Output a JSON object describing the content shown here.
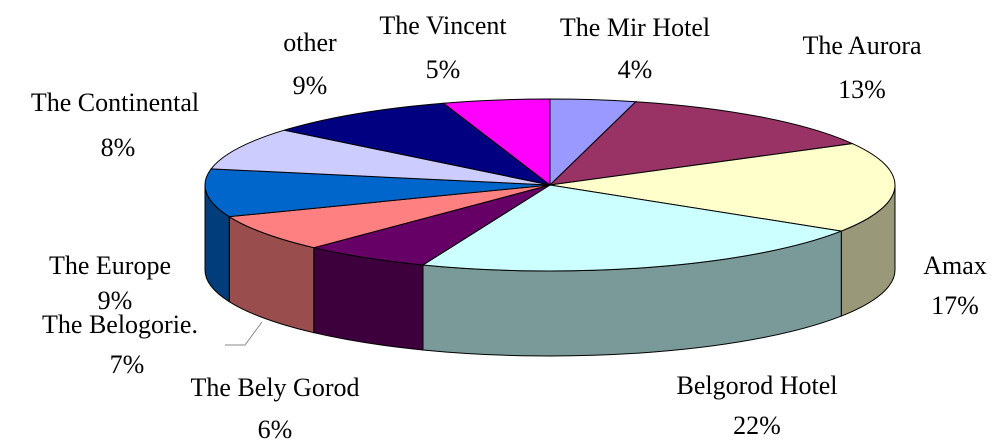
{
  "chart_data": {
    "type": "pie3d",
    "categories": [
      "The Mir Hotel",
      "The Aurora",
      "Amax",
      "Belgorod Hotel",
      "The Bely Gorod",
      "The Belogorie.",
      "The Europe",
      "The Continental",
      "other",
      "The Vincent"
    ],
    "values": [
      4,
      13,
      17,
      22,
      6,
      7,
      9,
      8,
      9,
      5
    ],
    "value_labels": [
      "4%",
      "13%",
      "17%",
      "22%",
      "6%",
      "7%",
      "9%",
      "8%",
      "9%",
      "5%"
    ],
    "colors": [
      "#9999ff",
      "#993366",
      "#ffffcc",
      "#ccffff",
      "#660066",
      "#ff8080",
      "#0066cc",
      "#ccccff",
      "#000080",
      "#ff00ff"
    ]
  }
}
